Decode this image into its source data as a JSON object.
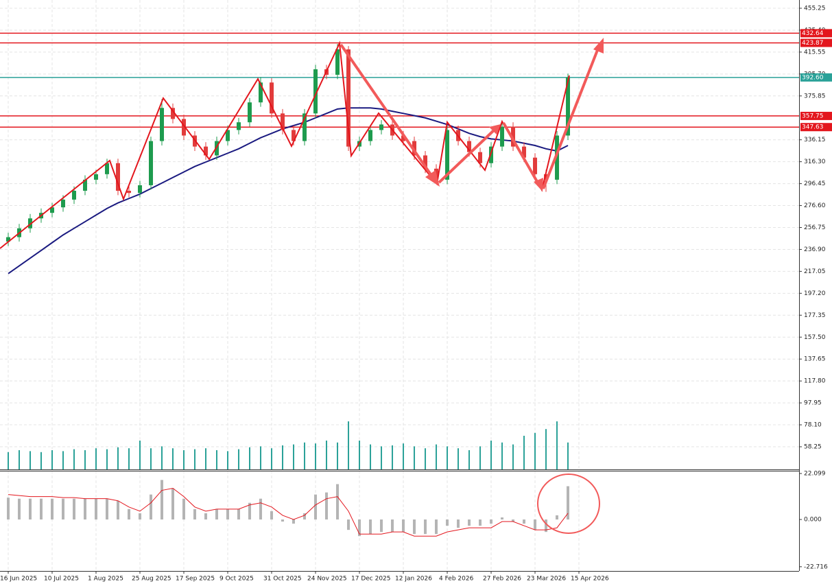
{
  "chart_data": [
    {
      "type": "candlestick",
      "open": [
        244,
        248,
        256,
        265,
        270,
        275,
        282,
        290,
        300,
        305,
        315,
        290,
        288,
        295,
        335,
        365,
        355,
        340,
        330,
        322,
        335,
        345,
        352,
        370,
        388,
        360,
        345,
        335,
        360,
        400,
        395,
        418,
        330,
        335,
        345,
        350,
        340,
        335,
        322,
        310,
        300,
        345,
        335,
        325,
        315,
        330,
        348,
        330,
        320,
        305,
        300,
        340
      ],
      "high": [
        252,
        260,
        269,
        274,
        279,
        286,
        294,
        304,
        309,
        319,
        319,
        294,
        299,
        339,
        373,
        369,
        359,
        344,
        334,
        339,
        349,
        356,
        374,
        393,
        392,
        364,
        349,
        364,
        404,
        404,
        423,
        421,
        339,
        349,
        354,
        354,
        344,
        339,
        326,
        314,
        349,
        349,
        339,
        329,
        334,
        352,
        352,
        334,
        324,
        309,
        344,
        396
      ],
      "low": [
        240,
        244,
        252,
        261,
        266,
        271,
        278,
        286,
        296,
        301,
        286,
        284,
        284,
        291,
        331,
        351,
        336,
        326,
        318,
        318,
        331,
        341,
        348,
        366,
        356,
        341,
        331,
        331,
        356,
        391,
        391,
        326,
        326,
        331,
        341,
        336,
        331,
        318,
        306,
        296,
        296,
        331,
        321,
        311,
        311,
        326,
        326,
        316,
        301,
        289,
        296,
        336
      ],
      "close": [
        248,
        256,
        265,
        270,
        275,
        282,
        290,
        300,
        305,
        315,
        290,
        288,
        295,
        335,
        365,
        355,
        340,
        330,
        322,
        335,
        345,
        352,
        370,
        388,
        360,
        345,
        335,
        360,
        400,
        395,
        418,
        330,
        335,
        345,
        350,
        340,
        335,
        322,
        310,
        300,
        345,
        335,
        325,
        315,
        330,
        348,
        330,
        320,
        305,
        300,
        340,
        392.6
      ],
      "up_color": "#1e9b4e",
      "down_color": "#e23b3b",
      "ma": {
        "color": "#1a1a80",
        "values": [
          215,
          222,
          229,
          236,
          243,
          250,
          256,
          262,
          268,
          274,
          279,
          283,
          287,
          292,
          297,
          302,
          307,
          312,
          316,
          320,
          324,
          328,
          333,
          338,
          342,
          346,
          349,
          352,
          356,
          360,
          364,
          365,
          365,
          365,
          364,
          362,
          360,
          358,
          356,
          353,
          350,
          346,
          342,
          339,
          337,
          336,
          335,
          333,
          331,
          328,
          326,
          331
        ]
      },
      "volume": {
        "color": "#2aa198",
        "values": [
          18,
          20,
          19,
          18,
          20,
          19,
          21,
          20,
          22,
          21,
          23,
          22,
          30,
          22,
          24,
          22,
          20,
          21,
          22,
          20,
          19,
          21,
          23,
          24,
          22,
          25,
          26,
          28,
          27,
          30,
          28,
          50,
          30,
          26,
          24,
          25,
          27,
          24,
          22,
          26,
          24,
          22,
          20,
          24,
          30,
          28,
          26,
          35,
          38,
          42,
          50,
          28
        ]
      },
      "levels": [
        {
          "value": 432.64,
          "color": "#e3161d"
        },
        {
          "value": 423.87,
          "color": "#e3161d"
        },
        {
          "value": 392.6,
          "label": "392.60",
          "color": "#2aa198"
        },
        {
          "value": 357.75,
          "color": "#e3161d"
        },
        {
          "value": 347.63,
          "color": "#e3161d"
        }
      ],
      "ylim": [
        37.75,
        462.7
      ],
      "yticks": [
        455.25,
        {
          "value": 435.4,
          "label": "435.40"
        },
        415.55,
        {
          "value": 395.7,
          "label": "395.70"
        },
        375.85,
        336.15,
        {
          "value": 316.3,
          "label": "316.30"
        },
        296.45,
        {
          "value": 276.6,
          "label": "276.60"
        },
        256.75,
        {
          "value": 236.9,
          "label": "236.90"
        },
        217.05,
        {
          "value": 197.2,
          "label": "197.20"
        },
        177.35,
        {
          "value": 157.5,
          "label": "157.50"
        },
        137.65,
        {
          "value": 117.8,
          "label": "117.80"
        },
        97.95,
        {
          "value": 78.1,
          "label": "78.10"
        },
        58.25
      ],
      "xlim": [
        -0.75,
        72.06
      ],
      "xticks": [
        {
          "value": 0,
          "label": "16 Jun 2025"
        },
        {
          "value": 4,
          "label": "10 Jul 2025"
        },
        {
          "value": 8,
          "label": "1 Aug 2025"
        },
        {
          "value": 12,
          "label": "25 Aug 2025"
        },
        {
          "value": 16,
          "label": "17 Sep 2025"
        },
        {
          "value": 20,
          "label": "9 Oct 2025"
        },
        {
          "value": 24,
          "label": "31 Oct 2025"
        },
        {
          "value": 28,
          "label": "24 Nov 2025"
        },
        {
          "value": 32,
          "label": "17 Dec 2025"
        },
        {
          "value": 36,
          "label": "12 Jan 2026"
        },
        {
          "value": 40,
          "label": "4 Feb 2026"
        },
        {
          "value": 44,
          "label": "27 Feb 2026"
        },
        {
          "value": 48,
          "label": "23 Mar 2026"
        },
        {
          "value": 52,
          "label": "15 Apr 2026"
        }
      ],
      "grid": true
    },
    {
      "type": "oscillator",
      "histogram": {
        "color": "#b4b4b4",
        "values": [
          10.5,
          10,
          10,
          10,
          10,
          10,
          10,
          10,
          10,
          10,
          9,
          5,
          3,
          12,
          19,
          15,
          10,
          5,
          3,
          5,
          5,
          5,
          8,
          10,
          4,
          -1,
          -2,
          3,
          12,
          13,
          17,
          -5,
          -8,
          -7,
          -6,
          -6,
          -6,
          -7,
          -7,
          -7,
          -3,
          -4,
          -3,
          -3,
          -2,
          1,
          -1,
          -2,
          -5,
          -6,
          2,
          16
        ]
      },
      "signal": {
        "color": "#e3161d",
        "values": [
          12,
          11.5,
          11,
          11,
          11,
          10.5,
          10.5,
          10,
          10,
          10,
          9,
          6,
          4,
          8,
          14,
          15,
          11,
          6,
          4,
          5,
          5,
          5,
          7,
          8,
          6,
          2,
          0,
          2,
          7,
          10,
          11,
          4,
          -7,
          -7,
          -7,
          -6,
          -6,
          -8,
          -8,
          -8,
          -6,
          -5,
          -4,
          -4,
          -4,
          -1,
          -1,
          -3,
          -5,
          -5,
          -4,
          3
        ]
      },
      "ylim": [
        -24.75,
        23.42
      ],
      "yticks": [
        22.099,
        {
          "value": 0,
          "label": "0.000"
        },
        -22.716
      ]
    }
  ]
}
